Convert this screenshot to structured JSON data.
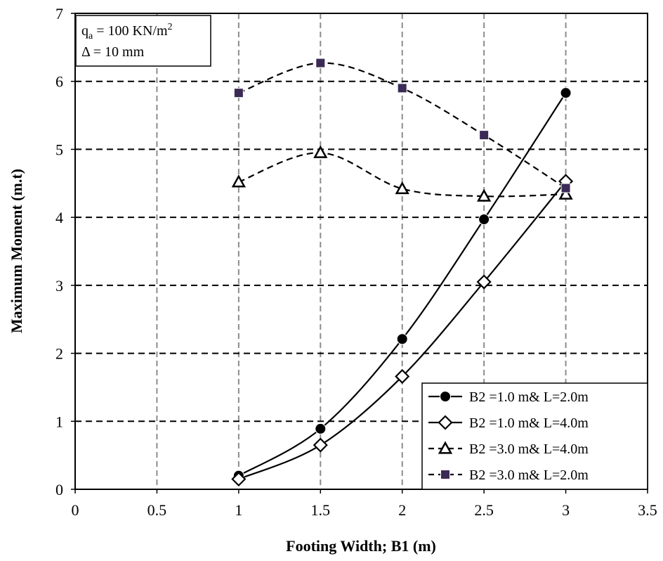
{
  "chart_data": {
    "type": "line",
    "xlabel": "Footing Width; B1 (m)",
    "ylabel": "Maximum Moment (m.t)",
    "xlim": [
      0,
      3.5
    ],
    "ylim": [
      0,
      7
    ],
    "x_ticks": [
      "0",
      "0.5",
      "1",
      "1.5",
      "2",
      "2.5",
      "3",
      "3.5"
    ],
    "y_ticks": [
      "0",
      "1",
      "2",
      "3",
      "4",
      "5",
      "6",
      "7"
    ],
    "grid": true,
    "legend_position": "bottom-right",
    "annotation": {
      "line1_prefix": "q",
      "line1_sub": "a",
      "line1_mid": " = 100 KN/m",
      "line1_sup": "2",
      "line2": "Δ = 10 mm"
    },
    "series": [
      {
        "name": "B2 =1.0 m& L=2.0m",
        "x": [
          1,
          1.5,
          2,
          2.5,
          3
        ],
        "y": [
          0.2,
          0.89,
          2.21,
          3.97,
          5.83
        ],
        "line": "solid",
        "marker": "circle",
        "color": "#000000"
      },
      {
        "name": "B2 =1.0 m& L=4.0m",
        "x": [
          1,
          1.5,
          2,
          2.5,
          3
        ],
        "y": [
          0.15,
          0.65,
          1.66,
          3.05,
          4.53
        ],
        "line": "solid",
        "marker": "diamond-open",
        "color": "#000000"
      },
      {
        "name": "B2 =3.0 m& L=4.0m",
        "x": [
          1,
          1.5,
          2,
          2.5,
          3
        ],
        "y": [
          4.52,
          4.95,
          4.42,
          4.31,
          4.34
        ],
        "line": "dashed",
        "marker": "triangle-open",
        "color": "#000000"
      },
      {
        "name": "B2 =3.0 m& L=2.0m",
        "x": [
          1,
          1.5,
          2,
          2.5,
          3
        ],
        "y": [
          5.83,
          6.27,
          5.9,
          5.21,
          4.43
        ],
        "line": "dashed",
        "marker": "square",
        "color": "#3b2a55"
      }
    ]
  }
}
